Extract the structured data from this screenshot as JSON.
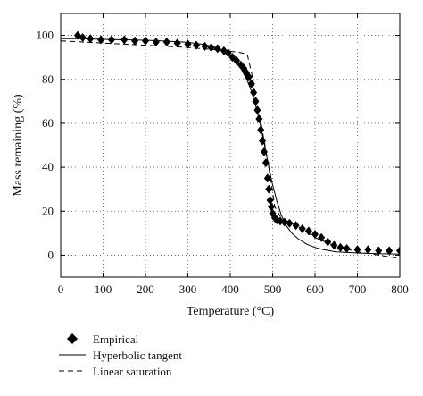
{
  "chart_data": {
    "type": "scatter",
    "title": "",
    "xlabel": "Temperature (°C)",
    "ylabel": "Mass remaining (%)",
    "xlim": [
      0,
      800
    ],
    "ylim": [
      -10,
      110
    ],
    "xticks": [
      0,
      100,
      200,
      300,
      400,
      500,
      600,
      700,
      800
    ],
    "yticks": [
      0,
      20,
      40,
      60,
      80,
      100
    ],
    "grid": true,
    "legend_position": "bottom-left",
    "series": [
      {
        "name": "Empirical",
        "kind": "points",
        "marker": "diamond",
        "color": "#000000",
        "x": [
          40,
          52,
          70,
          95,
          120,
          150,
          175,
          200,
          225,
          250,
          275,
          300,
          320,
          340,
          355,
          370,
          385,
          395,
          405,
          415,
          425,
          432,
          438,
          444,
          450,
          455,
          460,
          464,
          468,
          472,
          476,
          480,
          484,
          488,
          491,
          494,
          497,
          500,
          505,
          510,
          518,
          528,
          540,
          555,
          570,
          585,
          600,
          615,
          630,
          645,
          660,
          675,
          700,
          725,
          750,
          775,
          800
        ],
        "y": [
          100,
          99,
          98.5,
          98,
          98,
          98,
          97.5,
          97.5,
          97,
          97,
          96.5,
          96,
          95.5,
          95,
          94.5,
          94,
          93,
          92,
          90,
          88.5,
          86.5,
          85,
          83,
          81,
          78,
          74,
          70,
          66,
          62,
          57,
          52,
          47,
          42,
          35,
          30,
          25,
          22,
          19,
          17,
          16,
          15.5,
          15,
          14.5,
          13.5,
          12,
          11,
          9.5,
          8,
          6,
          4.5,
          3.5,
          3,
          2.5,
          2.5,
          2,
          2,
          2
        ]
      },
      {
        "name": "Hyperbolic tangent",
        "kind": "line",
        "dash": "solid",
        "color": "#000000",
        "x": [
          0,
          50,
          100,
          150,
          200,
          250,
          300,
          340,
          370,
          390,
          410,
          425,
          440,
          450,
          460,
          470,
          480,
          490,
          500,
          510,
          520,
          530,
          545,
          560,
          580,
          600,
          620,
          650,
          700,
          750,
          800
        ],
        "y": [
          98.5,
          98.5,
          98.2,
          98,
          97.8,
          97.4,
          96.8,
          95.8,
          94.2,
          92.2,
          89,
          85,
          79.5,
          74.5,
          68,
          60,
          51,
          41,
          32,
          24.5,
          18.5,
          14,
          10,
          7.5,
          5,
          3.5,
          2.5,
          1.5,
          1,
          0.7,
          0.5
        ]
      },
      {
        "name": "Linear saturation",
        "kind": "line",
        "dash": "dashed",
        "color": "#000000",
        "x": [
          0,
          100,
          200,
          300,
          380,
          420,
          440,
          450,
          460,
          470,
          480,
          490,
          498,
          505,
          520,
          560,
          600,
          650,
          700,
          750,
          800
        ],
        "y": [
          97.5,
          96.5,
          95.5,
          94.5,
          93.2,
          92.3,
          91.5,
          83,
          73,
          63,
          52,
          41,
          31,
          22,
          17,
          13,
          8,
          4,
          1.5,
          0,
          -1.5
        ]
      }
    ]
  }
}
